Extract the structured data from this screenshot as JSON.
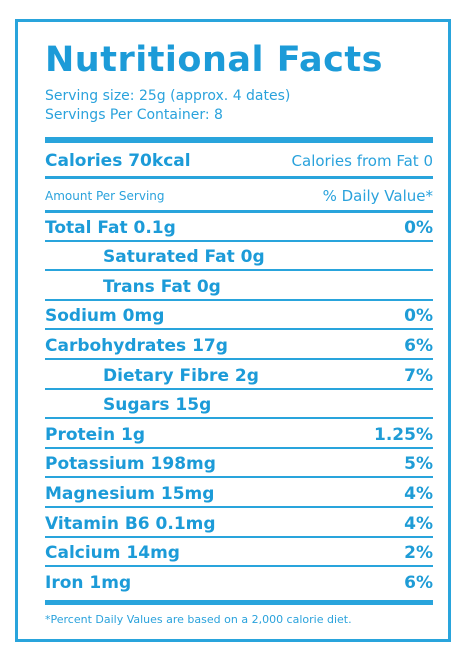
{
  "title": "Nutritional Facts",
  "serving_size": "Serving size: 25g (approx. 4 dates)",
  "servings_per_container": "Servings Per Container: 8",
  "calories": "Calories 70kcal",
  "calories_from_fat": "Calories from Fat 0",
  "amount_per_serving": "Amount Per Serving",
  "daily_value_header": "% Daily Value*",
  "nutrients": [
    {
      "label": "Total Fat 0.1g",
      "dv": "0%"
    },
    {
      "label": "Saturated Fat 0g",
      "dv": ""
    },
    {
      "label": "Trans Fat 0g",
      "dv": ""
    },
    {
      "label": "Sodium 0mg",
      "dv": "0%"
    },
    {
      "label": "Carbohydrates 17g",
      "dv": "6%"
    },
    {
      "label": "Dietary Fibre 2g",
      "dv": "7%"
    },
    {
      "label": "Sugars 15g",
      "dv": ""
    },
    {
      "label": "Protein 1g",
      "dv": "1.25%"
    },
    {
      "label": "Potassium 198mg",
      "dv": "5%"
    },
    {
      "label": "Magnesium 15mg",
      "dv": "4%"
    },
    {
      "label": "Vitamin B6 0.1mg",
      "dv": "4%"
    },
    {
      "label": "Calcium 14mg",
      "dv": "2%"
    },
    {
      "label": "Iron 1mg",
      "dv": "6%"
    }
  ],
  "footnote": "*Percent Daily Values are based on a 2,000 calorie diet.",
  "colors": {
    "accent": "#1c9bd8",
    "rule": "#29a4dc",
    "background": "#ffffff"
  }
}
